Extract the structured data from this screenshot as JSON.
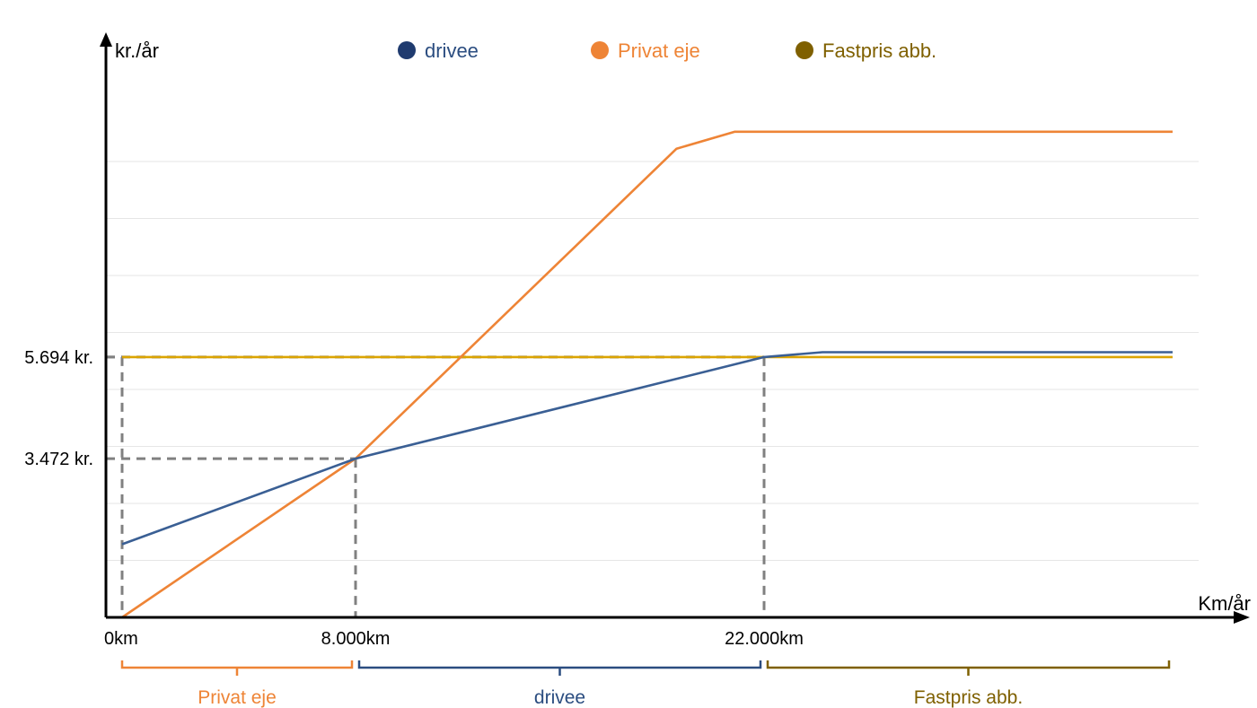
{
  "chart_data": {
    "type": "line",
    "xlabel": "Km/år",
    "ylabel": "kr./år",
    "xlim": [
      0,
      36000
    ],
    "ylim": [
      0,
      11500
    ],
    "grid": true,
    "legend_position": "top",
    "colors": {
      "drivee": "#3a5f94",
      "private": "#ee8436",
      "fixed": "#dba400",
      "fixed_label": "#7f6000",
      "drivee_dot": "#1f3b6f",
      "guide": "#808080"
    },
    "legend": [
      {
        "key": "drivee",
        "label": "drivee",
        "text_color": "#2b4d80",
        "dot_color": "#1f3b6f"
      },
      {
        "key": "private",
        "label": "Privat eje",
        "text_color": "#ee8436",
        "dot_color": "#ee8436"
      },
      {
        "key": "fixed",
        "label": "Fastpris abb.",
        "text_color": "#7f6000",
        "dot_color": "#7f6000"
      }
    ],
    "series": [
      {
        "key": "private",
        "color": "#ee8436",
        "points": [
          [
            0,
            0
          ],
          [
            8000,
            3472
          ],
          [
            19000,
            10250
          ],
          [
            21000,
            10620
          ],
          [
            36000,
            10620
          ]
        ]
      },
      {
        "key": "drivee",
        "color": "#3a5f94",
        "points": [
          [
            0,
            1600
          ],
          [
            8000,
            3472
          ],
          [
            22000,
            5694
          ],
          [
            24000,
            5800
          ],
          [
            36000,
            5800
          ]
        ]
      },
      {
        "key": "fixed",
        "color": "#dba400",
        "points": [
          [
            0,
            5694
          ],
          [
            36000,
            5694
          ]
        ]
      }
    ],
    "y_ticks": [
      {
        "value": 5694,
        "label": "5.694 kr."
      },
      {
        "value": 3472,
        "label": "3.472 kr."
      }
    ],
    "x_ticks": [
      {
        "value": 0,
        "label": "0km"
      },
      {
        "value": 8000,
        "label": "8.000km"
      },
      {
        "value": 22000,
        "label": "22.000km"
      }
    ],
    "guides": [
      {
        "x": 0,
        "y": 5694
      },
      {
        "x": 8000,
        "y": 3472
      },
      {
        "x": 22000,
        "y": 5694
      }
    ],
    "ranges": [
      {
        "from": 0,
        "to": 8000,
        "label": "Privat eje",
        "color": "#ee8436"
      },
      {
        "from": 8000,
        "to": 22000,
        "label": "drivee",
        "color": "#2b4d80"
      },
      {
        "from": 22000,
        "to": 36000,
        "label": "Fastpris abb.",
        "color": "#7f6000"
      }
    ]
  }
}
